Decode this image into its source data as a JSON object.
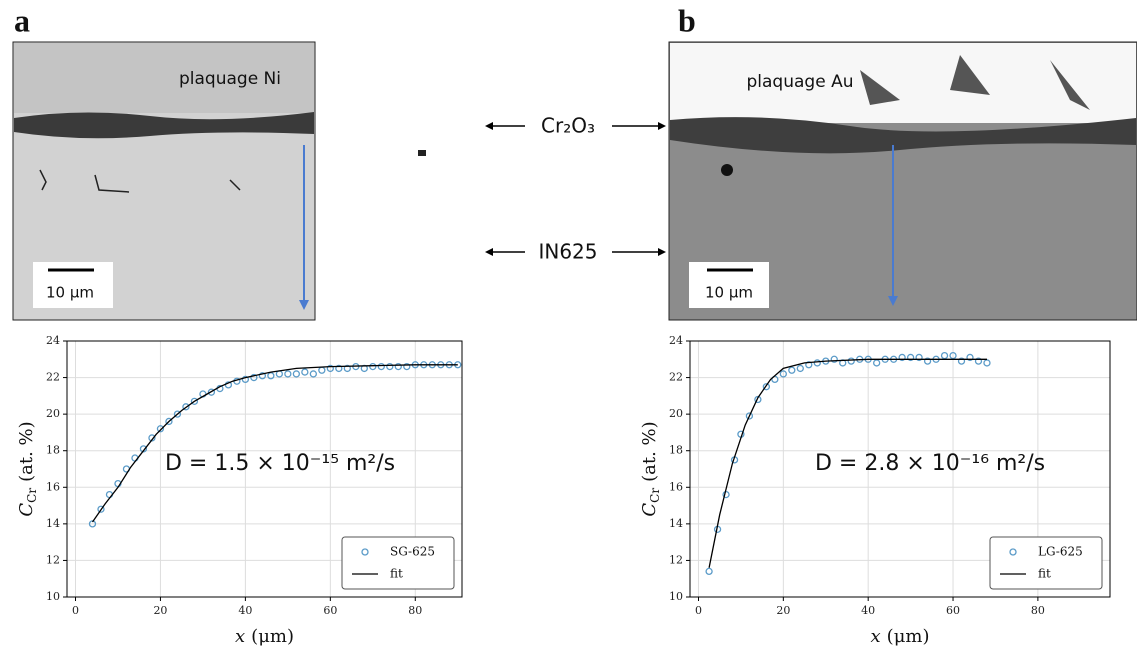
{
  "panel_labels": [
    "a",
    "b"
  ],
  "micrographs": [
    {
      "plating": "plaquage Ni",
      "scale": "10 μm"
    },
    {
      "plating": "plaquage Au",
      "scale": "10 μm"
    }
  ],
  "layers": [
    "Cr₂O₃",
    "IN625"
  ],
  "chart_data": [
    {
      "type": "scatter",
      "xlabel": "x",
      "xlabel_unit": "(μm)",
      "ylabel": "C",
      "ylabel_sub": "Cr",
      "ylabel_unit": "(at. %)",
      "annotation": "D = 1.5 × 10⁻¹⁵ m²/s",
      "xlim": [
        -2,
        91
      ],
      "xticks": [
        0,
        20,
        40,
        60,
        80
      ],
      "ylim": [
        10,
        24
      ],
      "yticks": [
        10,
        12,
        14,
        16,
        18,
        20,
        22,
        24
      ],
      "grid": true,
      "legend": "lower right",
      "series": [
        {
          "name": "SG-625",
          "type": "scatter",
          "color": "#5b9bc8",
          "x": [
            4,
            6,
            8,
            10,
            12,
            14,
            16,
            18,
            20,
            22,
            24,
            26,
            28,
            30,
            32,
            34,
            36,
            38,
            40,
            42,
            44,
            46,
            48,
            50,
            52,
            54,
            56,
            58,
            60,
            62,
            64,
            66,
            68,
            70,
            72,
            74,
            76,
            78,
            80,
            82,
            84,
            86,
            88,
            90
          ],
          "values": [
            14.0,
            14.8,
            15.6,
            16.2,
            17.0,
            17.6,
            18.1,
            18.7,
            19.2,
            19.6,
            20.0,
            20.4,
            20.7,
            21.1,
            21.2,
            21.4,
            21.6,
            21.8,
            21.9,
            22.0,
            22.1,
            22.1,
            22.2,
            22.2,
            22.2,
            22.3,
            22.2,
            22.4,
            22.5,
            22.5,
            22.5,
            22.6,
            22.5,
            22.6,
            22.6,
            22.6,
            22.6,
            22.6,
            22.7,
            22.7,
            22.7,
            22.7,
            22.7,
            22.7
          ]
        },
        {
          "name": "fit",
          "type": "line",
          "color": "#000000",
          "x": [
            4,
            7,
            10,
            13,
            16,
            19,
            22,
            25,
            28,
            31,
            34,
            37,
            40,
            46,
            52,
            60,
            70,
            80,
            90
          ],
          "values": [
            14.1,
            15.1,
            16.0,
            17.1,
            18.0,
            18.9,
            19.6,
            20.2,
            20.7,
            21.1,
            21.5,
            21.8,
            22.0,
            22.3,
            22.5,
            22.6,
            22.65,
            22.7,
            22.7
          ]
        }
      ]
    },
    {
      "type": "scatter",
      "xlabel": "x",
      "xlabel_unit": "(μm)",
      "ylabel": "C",
      "ylabel_sub": "Cr",
      "ylabel_unit": "(at. %)",
      "annotation": "D = 2.8 × 10⁻¹⁶ m²/s",
      "xlim": [
        -2,
        97
      ],
      "xticks": [
        0,
        20,
        40,
        60,
        80
      ],
      "ylim": [
        10,
        24
      ],
      "yticks": [
        10,
        12,
        14,
        16,
        18,
        20,
        22,
        24
      ],
      "grid": true,
      "legend": "lower right",
      "series": [
        {
          "name": "LG-625",
          "type": "scatter",
          "color": "#5b9bc8",
          "x": [
            2.5,
            4.5,
            6.5,
            8.5,
            10,
            12,
            14,
            16,
            18,
            20,
            22,
            24,
            26,
            28,
            30,
            32,
            34,
            36,
            38,
            40,
            42,
            44,
            46,
            48,
            50,
            52,
            54,
            56,
            58,
            60,
            62,
            64,
            66,
            68
          ],
          "values": [
            11.4,
            13.7,
            15.6,
            17.5,
            18.9,
            19.9,
            20.8,
            21.5,
            21.9,
            22.2,
            22.4,
            22.5,
            22.7,
            22.8,
            22.9,
            23.0,
            22.8,
            22.9,
            23.0,
            23.0,
            22.8,
            23.0,
            23.0,
            23.1,
            23.1,
            23.1,
            22.9,
            23.0,
            23.2,
            23.2,
            22.9,
            23.1,
            22.9,
            22.8
          ]
        },
        {
          "name": "fit",
          "type": "line",
          "color": "#000000",
          "x": [
            2.5,
            5,
            8,
            11,
            14,
            17,
            20,
            25,
            30,
            40,
            50,
            68
          ],
          "values": [
            11.6,
            14.5,
            17.3,
            19.4,
            20.9,
            21.9,
            22.5,
            22.8,
            22.9,
            23.0,
            23.0,
            23.0
          ]
        }
      ]
    }
  ]
}
